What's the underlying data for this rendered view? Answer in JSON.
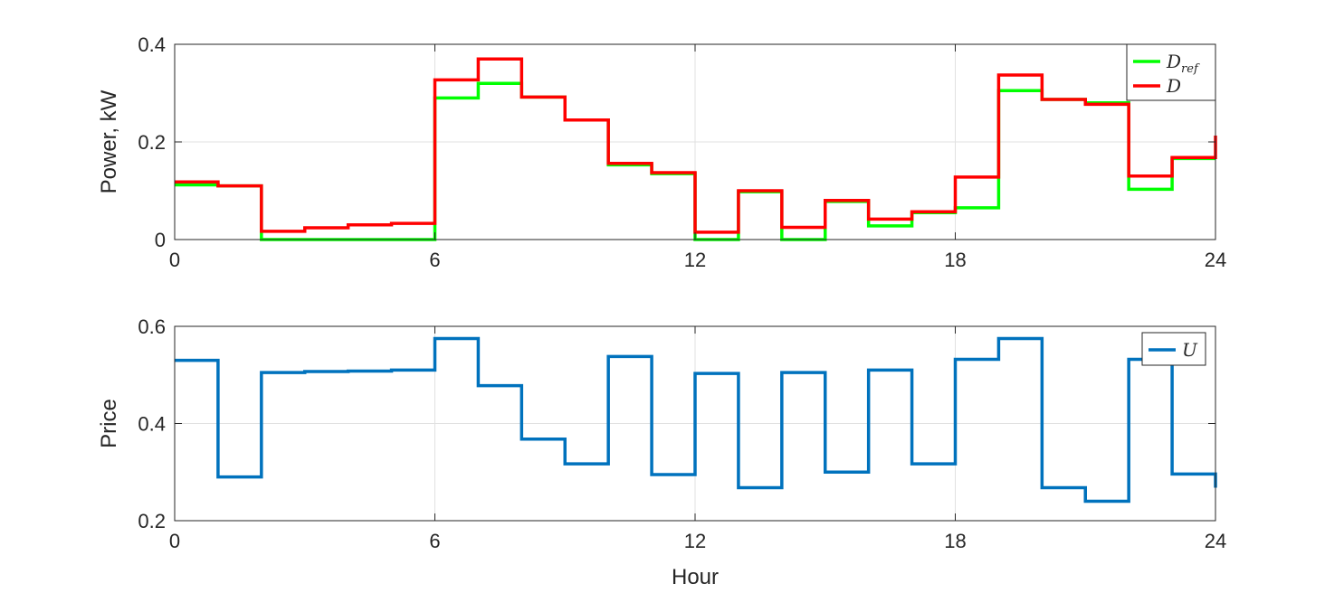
{
  "chart_data": [
    {
      "type": "line",
      "step": true,
      "xlabel": "",
      "ylabel": "Power, kW",
      "xlim": [
        0,
        24
      ],
      "ylim": [
        0,
        0.4
      ],
      "xticks": [
        0,
        6,
        12,
        18,
        24
      ],
      "xtick_labels": [
        "0",
        "6",
        "12",
        "18",
        "24"
      ],
      "yticks": [
        0,
        0.2,
        0.4
      ],
      "ytick_labels": [
        "0",
        "0.2",
        "0.4"
      ],
      "grid": true,
      "legend_position": "top-right",
      "x": [
        0,
        1,
        2,
        3,
        4,
        5,
        6,
        7,
        8,
        9,
        10,
        11,
        12,
        13,
        14,
        15,
        16,
        17,
        18,
        19,
        20,
        21,
        22,
        23
      ],
      "series": [
        {
          "name": "D",
          "name_sub": "ref",
          "color": "#00ff00",
          "values": [
            0.112,
            0.11,
            0.0,
            0.0,
            0.0,
            0.0,
            0.29,
            0.32,
            0.292,
            0.245,
            0.153,
            0.135,
            0.0,
            0.098,
            0.0,
            0.078,
            0.028,
            0.055,
            0.065,
            0.305,
            0.287,
            0.28,
            0.103,
            0.166
          ]
        },
        {
          "name": "D",
          "name_sub": "",
          "color": "#ff0000",
          "values": [
            0.118,
            0.11,
            0.017,
            0.024,
            0.03,
            0.033,
            0.327,
            0.37,
            0.292,
            0.245,
            0.156,
            0.137,
            0.015,
            0.1,
            0.025,
            0.08,
            0.042,
            0.057,
            0.128,
            0.337,
            0.287,
            0.277,
            0.13,
            0.168
          ],
          "end_value": 0.213
        }
      ]
    },
    {
      "type": "line",
      "step": true,
      "xlabel": "Hour",
      "ylabel": "Price",
      "xlim": [
        0,
        24
      ],
      "ylim": [
        0.2,
        0.6
      ],
      "xticks": [
        0,
        6,
        12,
        18,
        24
      ],
      "xtick_labels": [
        "0",
        "6",
        "12",
        "18",
        "24"
      ],
      "yticks": [
        0.2,
        0.4,
        0.6
      ],
      "ytick_labels": [
        "0.2",
        "0.4",
        "0.6"
      ],
      "grid": true,
      "legend_position": "top-right",
      "x": [
        0,
        1,
        2,
        3,
        4,
        5,
        6,
        7,
        8,
        9,
        10,
        11,
        12,
        13,
        14,
        15,
        16,
        17,
        18,
        19,
        20,
        21,
        22,
        23
      ],
      "series": [
        {
          "name": "U",
          "name_sub": "",
          "color": "#0072bd",
          "values": [
            0.53,
            0.29,
            0.505,
            0.507,
            0.508,
            0.51,
            0.575,
            0.478,
            0.368,
            0.317,
            0.538,
            0.295,
            0.503,
            0.268,
            0.505,
            0.3,
            0.51,
            0.317,
            0.532,
            0.575,
            0.268,
            0.24,
            0.532,
            0.296
          ],
          "end_value": 0.268
        }
      ]
    }
  ]
}
